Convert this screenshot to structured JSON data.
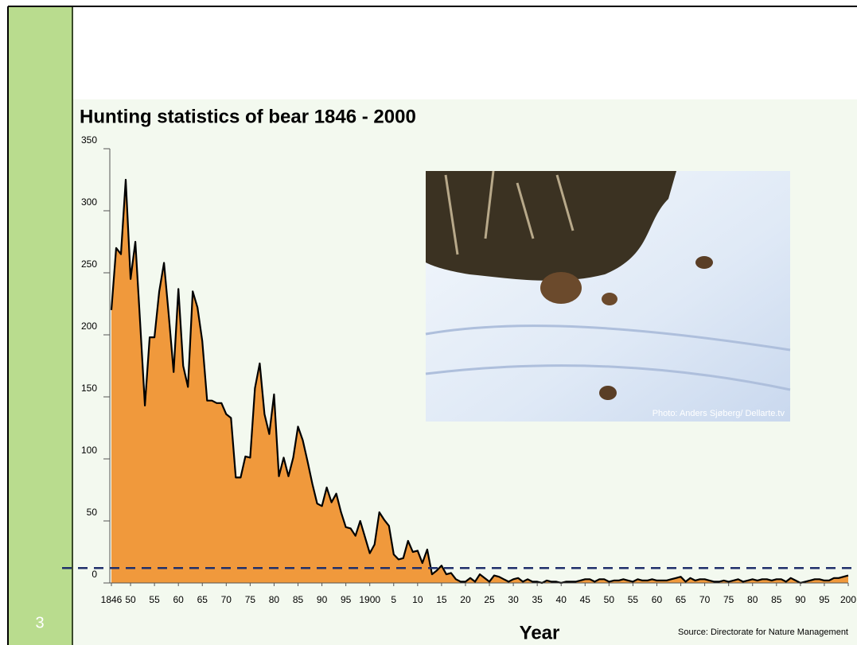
{
  "slide_number": "3",
  "chart_data": {
    "type": "area",
    "title": "Hunting statistics of bear 1846 - 2000",
    "x_label": "Year",
    "source": "Source: Directorate for Nature Management",
    "photo_credit": "Photo: Anders Sjøberg/ Dellarte.tv",
    "color": "#f0993c",
    "line_color": "#000000",
    "reference_line": 12,
    "reference_color": "#1f2f6b",
    "xlim": [
      1846,
      2000
    ],
    "ylim": [
      0,
      350
    ],
    "yticks": [
      0,
      50,
      100,
      150,
      200,
      250,
      300,
      350
    ],
    "xticks": [
      1846,
      {
        "value": 1850,
        "label": "50"
      },
      {
        "value": 1855,
        "label": "55"
      },
      {
        "value": 1860,
        "label": "60"
      },
      {
        "value": 1865,
        "label": "65"
      },
      {
        "value": 1870,
        "label": "70"
      },
      {
        "value": 1875,
        "label": "75"
      },
      {
        "value": 1880,
        "label": "80"
      },
      {
        "value": 1885,
        "label": "85"
      },
      {
        "value": 1890,
        "label": "90"
      },
      {
        "value": 1895,
        "label": "95"
      },
      1900,
      {
        "value": 1905,
        "label": "5"
      },
      {
        "value": 1910,
        "label": "10"
      },
      {
        "value": 1915,
        "label": "15"
      },
      {
        "value": 1920,
        "label": "20"
      },
      {
        "value": 1925,
        "label": "25"
      },
      {
        "value": 1930,
        "label": "30"
      },
      {
        "value": 1935,
        "label": "35"
      },
      {
        "value": 1940,
        "label": "40"
      },
      {
        "value": 1945,
        "label": "45"
      },
      {
        "value": 1950,
        "label": "50"
      },
      {
        "value": 1955,
        "label": "55"
      },
      {
        "value": 1960,
        "label": "60"
      },
      {
        "value": 1965,
        "label": "65"
      },
      {
        "value": 1970,
        "label": "70"
      },
      {
        "value": 1975,
        "label": "75"
      },
      {
        "value": 1980,
        "label": "80"
      },
      {
        "value": 1985,
        "label": "85"
      },
      {
        "value": 1990,
        "label": "90"
      },
      {
        "value": 1995,
        "label": "95"
      },
      {
        "value": 2000,
        "label": "200"
      }
    ],
    "x": [
      1846,
      1847,
      1848,
      1849,
      1850,
      1851,
      1852,
      1853,
      1854,
      1855,
      1856,
      1857,
      1858,
      1859,
      1860,
      1861,
      1862,
      1863,
      1864,
      1865,
      1866,
      1867,
      1868,
      1869,
      1870,
      1871,
      1872,
      1873,
      1874,
      1875,
      1876,
      1877,
      1878,
      1879,
      1880,
      1881,
      1882,
      1883,
      1884,
      1885,
      1886,
      1887,
      1888,
      1889,
      1890,
      1891,
      1892,
      1893,
      1894,
      1895,
      1896,
      1897,
      1898,
      1899,
      1900,
      1901,
      1902,
      1903,
      1904,
      1905,
      1906,
      1907,
      1908,
      1909,
      1910,
      1911,
      1912,
      1913,
      1914,
      1915,
      1916,
      1917,
      1918,
      1919,
      1920,
      1921,
      1922,
      1923,
      1924,
      1925,
      1926,
      1927,
      1928,
      1929,
      1930,
      1931,
      1932,
      1933,
      1934,
      1935,
      1936,
      1937,
      1938,
      1939,
      1940,
      1941,
      1942,
      1943,
      1944,
      1945,
      1946,
      1947,
      1948,
      1949,
      1950,
      1951,
      1952,
      1953,
      1954,
      1955,
      1956,
      1957,
      1958,
      1959,
      1960,
      1961,
      1962,
      1963,
      1964,
      1965,
      1966,
      1967,
      1968,
      1969,
      1970,
      1971,
      1972,
      1973,
      1974,
      1975,
      1976,
      1977,
      1978,
      1979,
      1980,
      1981,
      1982,
      1983,
      1984,
      1985,
      1986,
      1987,
      1988,
      1989,
      1990,
      1991,
      1992,
      1993,
      1994,
      1995,
      1996,
      1997,
      1998,
      1999,
      2000
    ],
    "values": [
      220,
      270,
      265,
      325,
      245,
      275,
      210,
      143,
      198,
      198,
      235,
      258,
      215,
      170,
      237,
      175,
      158,
      235,
      222,
      195,
      147,
      147,
      145,
      145,
      136,
      133,
      85,
      85,
      102,
      101,
      157,
      177,
      136,
      120,
      152,
      86,
      101,
      86,
      101,
      126,
      115,
      98,
      80,
      64,
      62,
      77,
      65,
      72,
      57,
      45,
      44,
      38,
      50,
      37,
      24,
      31,
      57,
      51,
      46,
      23,
      19,
      20,
      34,
      25,
      26,
      16,
      27,
      7,
      10,
      14,
      7,
      8,
      3,
      1,
      1,
      4,
      1,
      7,
      4,
      1,
      6,
      5,
      3,
      1,
      3,
      4,
      1,
      3,
      1,
      1,
      0,
      2,
      1,
      1,
      0,
      1,
      1,
      1,
      2,
      3,
      3,
      1,
      3,
      3,
      1,
      2,
      2,
      3,
      2,
      1,
      3,
      2,
      2,
      3,
      2,
      2,
      2,
      3,
      4,
      5,
      1,
      4,
      2,
      3,
      3,
      2,
      1,
      1,
      2,
      1,
      2,
      3,
      1,
      2,
      3,
      2,
      3,
      3,
      2,
      3,
      3,
      1,
      4,
      2,
      0,
      1,
      2,
      3,
      3,
      2,
      2,
      4,
      4,
      5,
      6
    ]
  }
}
